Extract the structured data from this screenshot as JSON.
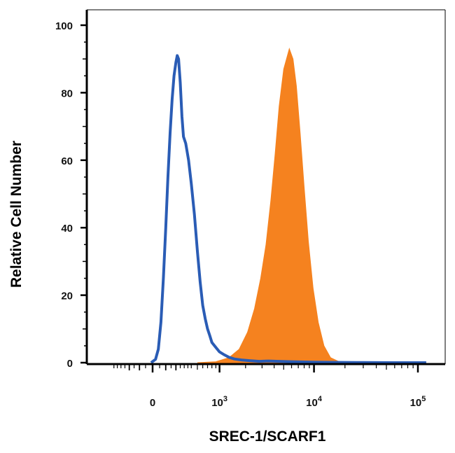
{
  "chart_data": {
    "type": "area",
    "title": "",
    "xlabel": "SREC-1/SCARF1",
    "ylabel": "Relative Cell Number",
    "x_scale": "biexponential",
    "ylim": [
      0,
      100
    ],
    "y_ticks": [
      {
        "value": 0,
        "label": "0"
      },
      {
        "value": 20,
        "label": "20"
      },
      {
        "value": 40,
        "label": "40"
      },
      {
        "value": 60,
        "label": "60"
      },
      {
        "value": 80,
        "label": "80"
      },
      {
        "value": 100,
        "label": "100"
      }
    ],
    "x_ticks": [
      {
        "value": 0,
        "base": "0",
        "exp": ""
      },
      {
        "value": 1000,
        "base": "10",
        "exp": "3"
      },
      {
        "value": 10000,
        "base": "10",
        "exp": "4"
      },
      {
        "value": 100000,
        "base": "10",
        "exp": "5"
      }
    ],
    "grid": false,
    "legend": "none",
    "series": [
      {
        "style": "filled",
        "color": "#f5821f",
        "points": [
          [
            500,
            0
          ],
          [
            900,
            0.3
          ],
          [
            1300,
            1.5
          ],
          [
            1700,
            4
          ],
          [
            2100,
            9
          ],
          [
            2500,
            16
          ],
          [
            2900,
            25
          ],
          [
            3300,
            35
          ],
          [
            3700,
            48
          ],
          [
            4100,
            62
          ],
          [
            4500,
            76
          ],
          [
            5000,
            87
          ],
          [
            5700,
            93
          ],
          [
            6200,
            90
          ],
          [
            6700,
            82
          ],
          [
            7300,
            68
          ],
          [
            8000,
            52
          ],
          [
            8800,
            36
          ],
          [
            9800,
            22
          ],
          [
            11000,
            12
          ],
          [
            12500,
            5
          ],
          [
            14500,
            1.5
          ],
          [
            17500,
            0.3
          ],
          [
            20000,
            0
          ]
        ]
      },
      {
        "style": "outline",
        "color": "#2a5cb5",
        "points": [
          [
            -10,
            0
          ],
          [
            20,
            1
          ],
          [
            40,
            4
          ],
          [
            60,
            12
          ],
          [
            80,
            25
          ],
          [
            100,
            40
          ],
          [
            120,
            55
          ],
          [
            140,
            68
          ],
          [
            160,
            78
          ],
          [
            180,
            85
          ],
          [
            200,
            89
          ],
          [
            215,
            91
          ],
          [
            230,
            90
          ],
          [
            250,
            83
          ],
          [
            270,
            73
          ],
          [
            290,
            67
          ],
          [
            320,
            65
          ],
          [
            360,
            60
          ],
          [
            400,
            53
          ],
          [
            450,
            44
          ],
          [
            500,
            33
          ],
          [
            550,
            24
          ],
          [
            600,
            17
          ],
          [
            650,
            13
          ],
          [
            700,
            10
          ],
          [
            750,
            8
          ],
          [
            800,
            6
          ],
          [
            900,
            4.5
          ],
          [
            1000,
            3.2
          ],
          [
            1150,
            2.3
          ],
          [
            1300,
            1.6
          ],
          [
            1500,
            1.1
          ],
          [
            1800,
            0.8
          ],
          [
            2200,
            0.6
          ],
          [
            2800,
            0.4
          ],
          [
            3500,
            0.5
          ],
          [
            4500,
            0.4
          ],
          [
            6000,
            0.3
          ],
          [
            8000,
            0.2
          ],
          [
            10000,
            0.15
          ],
          [
            15000,
            0.1
          ],
          [
            30000,
            0.05
          ],
          [
            60000,
            0
          ],
          [
            120000,
            0
          ]
        ]
      }
    ]
  }
}
